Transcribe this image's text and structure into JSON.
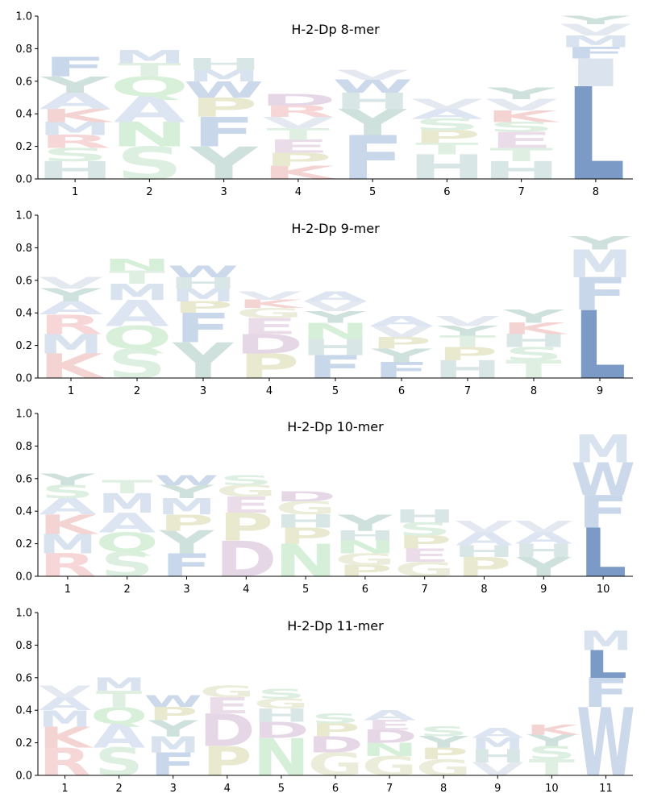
{
  "chart_data": [
    {
      "type": "sequence-logo",
      "title": "H-2-Dp 8-mer",
      "positions": [
        "1",
        "2",
        "3",
        "4",
        "5",
        "6",
        "7",
        "8"
      ],
      "yticks": [
        "0.0",
        "0.2",
        "0.4",
        "0.6",
        "0.8",
        "1.0"
      ],
      "ylim": [
        0,
        1
      ],
      "stacks": [
        [
          {
            "aa": "H",
            "h": 0.11
          },
          {
            "aa": "S",
            "h": 0.08
          },
          {
            "aa": "R",
            "h": 0.08
          },
          {
            "aa": "M",
            "h": 0.08
          },
          {
            "aa": "K",
            "h": 0.08
          },
          {
            "aa": "A",
            "h": 0.1
          },
          {
            "aa": "Y",
            "h": 0.1
          },
          {
            "aa": "F",
            "h": 0.12
          }
        ],
        [
          {
            "aa": "S",
            "h": 0.2
          },
          {
            "aa": "N",
            "h": 0.15
          },
          {
            "aa": "A",
            "h": 0.16
          },
          {
            "aa": "Q",
            "h": 0.12
          },
          {
            "aa": "T",
            "h": 0.08
          },
          {
            "aa": "M",
            "h": 0.08
          }
        ],
        [
          {
            "aa": "Y",
            "h": 0.2
          },
          {
            "aa": "F",
            "h": 0.18
          },
          {
            "aa": "P",
            "h": 0.12
          },
          {
            "aa": "W",
            "h": 0.1
          },
          {
            "aa": "M",
            "h": 0.07
          },
          {
            "aa": "H",
            "h": 0.07
          }
        ],
        [
          {
            "aa": "K",
            "h": 0.08
          },
          {
            "aa": "P",
            "h": 0.08
          },
          {
            "aa": "E",
            "h": 0.08
          },
          {
            "aa": "T",
            "h": 0.07
          },
          {
            "aa": "V",
            "h": 0.07
          },
          {
            "aa": "R",
            "h": 0.07
          },
          {
            "aa": "D",
            "h": 0.07
          }
        ],
        [
          {
            "aa": "F",
            "h": 0.27
          },
          {
            "aa": "Y",
            "h": 0.16
          },
          {
            "aa": "H",
            "h": 0.1
          },
          {
            "aa": "W",
            "h": 0.08
          },
          {
            "aa": "V",
            "h": 0.06
          }
        ],
        [
          {
            "aa": "H",
            "h": 0.15
          },
          {
            "aa": "T",
            "h": 0.07
          },
          {
            "aa": "P",
            "h": 0.08
          },
          {
            "aa": "S",
            "h": 0.07
          },
          {
            "aa": "A",
            "h": 0.06
          },
          {
            "aa": "V",
            "h": 0.06
          }
        ],
        [
          {
            "aa": "H",
            "h": 0.11
          },
          {
            "aa": "T",
            "h": 0.08
          },
          {
            "aa": "E",
            "h": 0.1
          },
          {
            "aa": "S",
            "h": 0.06
          },
          {
            "aa": "K",
            "h": 0.07
          },
          {
            "aa": "V",
            "h": 0.07
          },
          {
            "aa": "Y",
            "h": 0.07
          }
        ],
        [
          {
            "aa": "L",
            "h": 0.57
          },
          {
            "aa": "I",
            "h": 0.17
          },
          {
            "aa": "F",
            "h": 0.07
          },
          {
            "aa": "M",
            "h": 0.07
          },
          {
            "aa": "V",
            "h": 0.07
          },
          {
            "aa": "Y",
            "h": 0.05
          }
        ]
      ]
    },
    {
      "type": "sequence-logo",
      "title": "H-2-Dp 9-mer",
      "positions": [
        "1",
        "2",
        "3",
        "4",
        "5",
        "6",
        "7",
        "8",
        "9"
      ],
      "yticks": [
        "0.0",
        "0.2",
        "0.4",
        "0.6",
        "0.8",
        "1.0"
      ],
      "ylim": [
        0,
        1
      ],
      "stacks": [
        [
          {
            "aa": "K",
            "h": 0.15
          },
          {
            "aa": "M",
            "h": 0.12
          },
          {
            "aa": "R",
            "h": 0.12
          },
          {
            "aa": "A",
            "h": 0.08
          },
          {
            "aa": "Y",
            "h": 0.08
          },
          {
            "aa": "V",
            "h": 0.07
          }
        ],
        [
          {
            "aa": "S",
            "h": 0.18
          },
          {
            "aa": "Q",
            "h": 0.14
          },
          {
            "aa": "A",
            "h": 0.16
          },
          {
            "aa": "M",
            "h": 0.1
          },
          {
            "aa": "T",
            "h": 0.08
          },
          {
            "aa": "N",
            "h": 0.07
          }
        ],
        [
          {
            "aa": "Y",
            "h": 0.22
          },
          {
            "aa": "F",
            "h": 0.18
          },
          {
            "aa": "P",
            "h": 0.07
          },
          {
            "aa": "M",
            "h": 0.08
          },
          {
            "aa": "H",
            "h": 0.07
          },
          {
            "aa": "W",
            "h": 0.07
          }
        ],
        [
          {
            "aa": "P",
            "h": 0.15
          },
          {
            "aa": "D",
            "h": 0.12
          },
          {
            "aa": "E",
            "h": 0.1
          },
          {
            "aa": "G",
            "h": 0.06
          },
          {
            "aa": "K",
            "h": 0.05
          },
          {
            "aa": "V",
            "h": 0.05
          }
        ],
        [
          {
            "aa": "F",
            "h": 0.14
          },
          {
            "aa": "H",
            "h": 0.1
          },
          {
            "aa": "N",
            "h": 0.1
          },
          {
            "aa": "Y",
            "h": 0.07
          },
          {
            "aa": "V",
            "h": 0.06
          },
          {
            "aa": "A",
            "h": 0.06
          }
        ],
        [
          {
            "aa": "F",
            "h": 0.1
          },
          {
            "aa": "Y",
            "h": 0.08
          },
          {
            "aa": "P",
            "h": 0.07
          },
          {
            "aa": "V",
            "h": 0.07
          },
          {
            "aa": "A",
            "h": 0.06
          }
        ],
        [
          {
            "aa": "H",
            "h": 0.11
          },
          {
            "aa": "P",
            "h": 0.08
          },
          {
            "aa": "T",
            "h": 0.07
          },
          {
            "aa": "Y",
            "h": 0.06
          },
          {
            "aa": "V",
            "h": 0.06
          }
        ],
        [
          {
            "aa": "T",
            "h": 0.11
          },
          {
            "aa": "S",
            "h": 0.08
          },
          {
            "aa": "H",
            "h": 0.08
          },
          {
            "aa": "K",
            "h": 0.07
          },
          {
            "aa": "Y",
            "h": 0.08
          }
        ],
        [
          {
            "aa": "L",
            "h": 0.42
          },
          {
            "aa": "F",
            "h": 0.2
          },
          {
            "aa": "M",
            "h": 0.17
          },
          {
            "aa": "Y",
            "h": 0.08
          }
        ]
      ]
    },
    {
      "type": "sequence-logo",
      "title": "H-2-Dp 10-mer",
      "positions": [
        "1",
        "2",
        "3",
        "4",
        "5",
        "6",
        "7",
        "8",
        "9",
        "10"
      ],
      "yticks": [
        "0.0",
        "0.2",
        "0.4",
        "0.6",
        "0.8",
        "1.0"
      ],
      "ylim": [
        0,
        1
      ],
      "stacks": [
        [
          {
            "aa": "R",
            "h": 0.14
          },
          {
            "aa": "M",
            "h": 0.12
          },
          {
            "aa": "K",
            "h": 0.12
          },
          {
            "aa": "A",
            "h": 0.1
          },
          {
            "aa": "S",
            "h": 0.08
          },
          {
            "aa": "Y",
            "h": 0.07
          }
        ],
        [
          {
            "aa": "S",
            "h": 0.15
          },
          {
            "aa": "Q",
            "h": 0.12
          },
          {
            "aa": "A",
            "h": 0.12
          },
          {
            "aa": "M",
            "h": 0.12
          },
          {
            "aa": "T",
            "h": 0.08
          }
        ],
        [
          {
            "aa": "F",
            "h": 0.14
          },
          {
            "aa": "Y",
            "h": 0.14
          },
          {
            "aa": "P",
            "h": 0.1
          },
          {
            "aa": "M",
            "h": 0.1
          },
          {
            "aa": "Y",
            "h": 0.08
          },
          {
            "aa": "W",
            "h": 0.06
          }
        ],
        [
          {
            "aa": "D",
            "h": 0.22
          },
          {
            "aa": "P",
            "h": 0.17
          },
          {
            "aa": "E",
            "h": 0.1
          },
          {
            "aa": "G",
            "h": 0.07
          },
          {
            "aa": "S",
            "h": 0.06
          }
        ],
        [
          {
            "aa": "N",
            "h": 0.2
          },
          {
            "aa": "P",
            "h": 0.1
          },
          {
            "aa": "H",
            "h": 0.08
          },
          {
            "aa": "G",
            "h": 0.08
          },
          {
            "aa": "D",
            "h": 0.06
          }
        ],
        [
          {
            "aa": "P",
            "h": 0.07
          },
          {
            "aa": "G",
            "h": 0.07
          },
          {
            "aa": "N",
            "h": 0.08
          },
          {
            "aa": "H",
            "h": 0.06
          },
          {
            "aa": "Y",
            "h": 0.1
          }
        ],
        [
          {
            "aa": "G",
            "h": 0.09
          },
          {
            "aa": "E",
            "h": 0.08
          },
          {
            "aa": "P",
            "h": 0.08
          },
          {
            "aa": "S",
            "h": 0.08
          },
          {
            "aa": "H",
            "h": 0.08
          }
        ],
        [
          {
            "aa": "P",
            "h": 0.12
          },
          {
            "aa": "H",
            "h": 0.07
          },
          {
            "aa": "A",
            "h": 0.08
          },
          {
            "aa": "V",
            "h": 0.07
          }
        ],
        [
          {
            "aa": "Y",
            "h": 0.12
          },
          {
            "aa": "H",
            "h": 0.08
          },
          {
            "aa": "A",
            "h": 0.07
          },
          {
            "aa": "V",
            "h": 0.07
          }
        ],
        [
          {
            "aa": "L",
            "h": 0.3
          },
          {
            "aa": "F",
            "h": 0.2
          },
          {
            "aa": "W",
            "h": 0.2
          },
          {
            "aa": "M",
            "h": 0.17
          }
        ]
      ]
    },
    {
      "type": "sequence-logo",
      "title": "H-2-Dp 11-mer",
      "positions": [
        "1",
        "2",
        "3",
        "4",
        "5",
        "6",
        "7",
        "8",
        "9",
        "10",
        "11"
      ],
      "yticks": [
        "0.0",
        "0.2",
        "0.4",
        "0.6",
        "0.8",
        "1.0"
      ],
      "ylim": [
        0,
        1
      ],
      "stacks": [
        [
          {
            "aa": "R",
            "h": 0.17
          },
          {
            "aa": "K",
            "h": 0.13
          },
          {
            "aa": "M",
            "h": 0.1
          },
          {
            "aa": "A",
            "h": 0.08
          },
          {
            "aa": "V",
            "h": 0.07
          }
        ],
        [
          {
            "aa": "S",
            "h": 0.17
          },
          {
            "aa": "A",
            "h": 0.15
          },
          {
            "aa": "Q",
            "h": 0.1
          },
          {
            "aa": "T",
            "h": 0.1
          },
          {
            "aa": "M",
            "h": 0.08
          }
        ],
        [
          {
            "aa": "F",
            "h": 0.14
          },
          {
            "aa": "M",
            "h": 0.1
          },
          {
            "aa": "Y",
            "h": 0.1
          },
          {
            "aa": "P",
            "h": 0.08
          },
          {
            "aa": "W",
            "h": 0.07
          }
        ],
        [
          {
            "aa": "P",
            "h": 0.18
          },
          {
            "aa": "D",
            "h": 0.2
          },
          {
            "aa": "E",
            "h": 0.1
          },
          {
            "aa": "G",
            "h": 0.07
          }
        ],
        [
          {
            "aa": "N",
            "h": 0.23
          },
          {
            "aa": "D",
            "h": 0.1
          },
          {
            "aa": "H",
            "h": 0.08
          },
          {
            "aa": "G",
            "h": 0.06
          },
          {
            "aa": "S",
            "h": 0.06
          }
        ],
        [
          {
            "aa": "G",
            "h": 0.14
          },
          {
            "aa": "D",
            "h": 0.1
          },
          {
            "aa": "P",
            "h": 0.08
          },
          {
            "aa": "S",
            "h": 0.06
          }
        ],
        [
          {
            "aa": "G",
            "h": 0.12
          },
          {
            "aa": "N",
            "h": 0.08
          },
          {
            "aa": "D",
            "h": 0.08
          },
          {
            "aa": "E",
            "h": 0.06
          },
          {
            "aa": "A",
            "h": 0.06
          }
        ],
        [
          {
            "aa": "G",
            "h": 0.1
          },
          {
            "aa": "P",
            "h": 0.07
          },
          {
            "aa": "Y",
            "h": 0.07
          },
          {
            "aa": "S",
            "h": 0.06
          }
        ],
        [
          {
            "aa": "V",
            "h": 0.08
          },
          {
            "aa": "H",
            "h": 0.08
          },
          {
            "aa": "M",
            "h": 0.07
          },
          {
            "aa": "A",
            "h": 0.06
          }
        ],
        [
          {
            "aa": "T",
            "h": 0.1
          },
          {
            "aa": "S",
            "h": 0.08
          },
          {
            "aa": "Y",
            "h": 0.07
          },
          {
            "aa": "K",
            "h": 0.06
          }
        ],
        [
          {
            "aa": "W",
            "h": 0.42
          },
          {
            "aa": "F",
            "h": 0.18
          },
          {
            "aa": "L",
            "h": 0.17
          },
          {
            "aa": "M",
            "h": 0.12
          }
        ]
      ]
    }
  ],
  "aa_colors": {
    "A": "#dde5f2",
    "R": "#f6d6d6",
    "K": "#f4d3d3",
    "H": "#d9e6e6",
    "D": "#e6d7e6",
    "E": "#eadde9",
    "N": "#d5efd8",
    "Q": "#d8efda",
    "S": "#dcefe0",
    "T": "#dff0e2",
    "G": "#ebecd9",
    "P": "#e8e9cf",
    "Y": "#cfe1dc",
    "F": "#c9d7ea",
    "W": "#ccd9ea",
    "M": "#d9e2ef",
    "L": "#7b9bc6",
    "I": "#dbe3ee",
    "V": "#e4e8f0",
    "C": "#eeeeee"
  }
}
